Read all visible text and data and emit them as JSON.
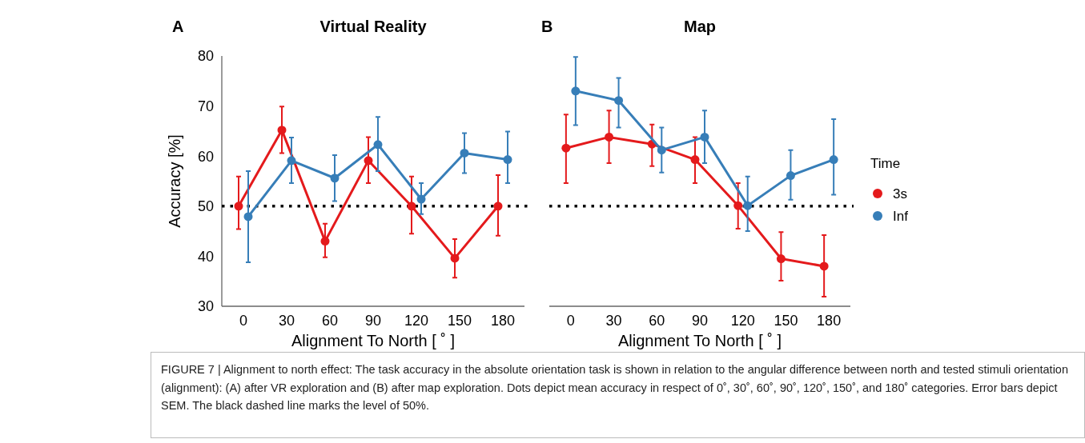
{
  "chart_data": [
    {
      "type": "line",
      "title": "Virtual Reality",
      "xlabel": "Alignment To North [ ˚ ]",
      "ylabel": "Accuracy [%]",
      "categories": [
        "0",
        "30",
        "60",
        "90",
        "120",
        "150",
        "180"
      ],
      "series": [
        {
          "color": "#e41a1c",
          "values": [
            50,
            65.2,
            43,
            59.1,
            50,
            39.6,
            50
          ],
          "errors": [
            [
              45.4,
              55.9
            ],
            [
              60.6,
              69.9
            ],
            [
              39.8,
              46.5
            ],
            [
              54.6,
              63.8
            ],
            [
              44.5,
              55.9
            ],
            [
              35.7,
              43.4
            ],
            [
              44.1,
              56.2
            ]
          ]
        },
        {
          "color": "#377eb8",
          "values": [
            47.9,
            59.1,
            55.6,
            62.3,
            51.4,
            60.6,
            59.3
          ],
          "errors": [
            [
              38.8,
              57
            ],
            [
              54.6,
              63.7
            ],
            [
              51,
              60.2
            ],
            [
              57,
              67.8
            ],
            [
              48.4,
              54.6
            ],
            [
              56.6,
              64.6
            ],
            [
              54.6,
              64.9
            ]
          ]
        }
      ],
      "ylim": [
        30,
        80
      ],
      "yticks": [
        30,
        40,
        50,
        60,
        70,
        80
      ],
      "marker": "circle",
      "line_style": "solid",
      "grid": false,
      "legend": false,
      "ref_lines": [
        {
          "axis": "y",
          "value": 50,
          "color": "#000000",
          "line_style": "dotted"
        }
      ],
      "annotations": [
        "A",
        "FIGURE 7 | Alignment to north effect: The task accuracy in the absolute orientation task is shown in relation to the angular difference between north and tested stimuli orientation (alignment): (A) after VR exploration and (B) after map exploration. Dots depict mean accuracy in respect of 0˚, 30˚, 60˚, 90˚, 120˚, 150˚, and 180˚ categories. Error bars depict SEM. The black dashed line marks the level of 50%."
      ]
    },
    {
      "type": "line",
      "title": "Map",
      "xlabel": "Alignment To North [ ˚ ]",
      "legend_title": "Time",
      "categories": [
        "0",
        "30",
        "60",
        "90",
        "120",
        "150",
        "180"
      ],
      "series": [
        {
          "name": "3s",
          "color": "#e41a1c",
          "values": [
            61.6,
            63.8,
            62.4,
            59.3,
            50.1,
            39.5,
            38
          ],
          "errors": [
            [
              54.6,
              68.3
            ],
            [
              58.6,
              69.1
            ],
            [
              58,
              66.3
            ],
            [
              54.6,
              63.8
            ],
            [
              45.5,
              54.6
            ],
            [
              35.1,
              44.8
            ],
            [
              31.9,
              44.2
            ]
          ]
        },
        {
          "name": "Inf",
          "color": "#377eb8",
          "values": [
            73,
            71.1,
            61.2,
            63.8,
            50.1,
            56.1,
            59.3
          ],
          "errors": [
            [
              66.2,
              79.8
            ],
            [
              65.7,
              75.6
            ],
            [
              56.7,
              65.7
            ],
            [
              58.6,
              69.1
            ],
            [
              45,
              55.9
            ],
            [
              51.3,
              61.2
            ],
            [
              52.3,
              67.4
            ]
          ]
        }
      ],
      "ylim": [
        30,
        80
      ],
      "tick_labels": "x",
      "marker": "circle",
      "line_style": "solid",
      "grid": false,
      "legend": "right",
      "ref_lines": [
        {
          "axis": "y",
          "value": 50,
          "color": "#000000",
          "line_style": "dotted"
        }
      ],
      "annotations": [
        "B"
      ]
    }
  ]
}
